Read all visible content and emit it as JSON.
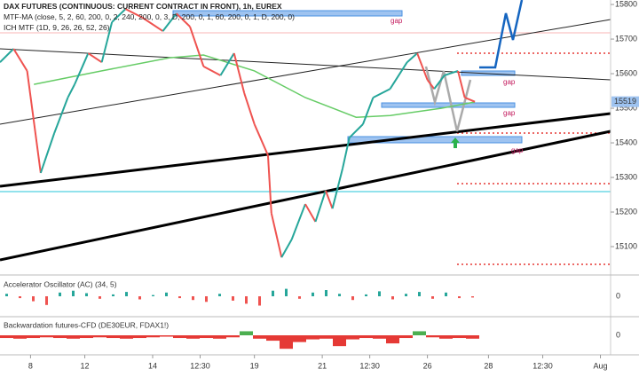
{
  "chart_data": {
    "type": "candle-line",
    "header": [
      "DAX FUTURES (CONTINUOUS: CURRENT CONTRACT IN FRONT), 1h, EUREX",
      "MTF-MA (close, 5, 2, 60, 200, 0, 2, 240, 200, 0, 3, D, 200, 0, 1, 60, 200, 0, 1, D, 200, 0)",
      "ICH MTF (1D, 9, 26, 26, 52, 26)"
    ],
    "gap_labels": [
      "gap",
      "gap",
      "gap",
      "gap"
    ],
    "x": [
      0,
      4,
      8,
      12,
      16,
      20,
      22,
      26,
      30,
      33,
      37,
      42,
      48,
      52,
      56,
      60,
      65,
      69,
      72,
      75,
      79,
      80,
      83,
      86,
      90,
      93,
      96,
      98,
      101,
      103,
      107,
      110,
      115,
      120,
      123,
      126,
      128,
      131,
      135,
      137,
      140
    ],
    "series": [
      {
        "name": "close",
        "color": "#26a69a",
        "values": [
          15633,
          15672,
          15608,
          15313,
          15428,
          15531,
          15569,
          15659,
          15633,
          15749,
          15787,
          15762,
          15723,
          15774,
          15736,
          15621,
          15595,
          15659,
          15544,
          15454,
          15364,
          15197,
          15069,
          15121,
          15223,
          15172,
          15262,
          15210,
          15326,
          15415,
          15454,
          15531,
          15556,
          15633,
          15659,
          15582,
          15556,
          15595,
          15608,
          15531,
          15519
        ]
      }
    ],
    "ma": {
      "color": "#66cc66",
      "x": [
        10,
        30,
        50,
        60,
        75,
        90,
        105,
        115,
        130,
        140
      ],
      "values": [
        15569,
        15608,
        15646,
        15654,
        15608,
        15531,
        15474,
        15479,
        15500,
        15518
      ]
    },
    "last_price": 15519,
    "xlim": [
      0,
      180
    ],
    "ylim": [
      15018,
      15813
    ],
    "yticks": [
      15100,
      15200,
      15300,
      15400,
      15500,
      15600,
      15700,
      15800
    ],
    "xticks": [
      {
        "value": 9,
        "label": "8"
      },
      {
        "value": 25,
        "label": "12"
      },
      {
        "value": 45,
        "label": "14"
      },
      {
        "value": 59,
        "label": "12:30"
      },
      {
        "value": 75,
        "label": "19"
      },
      {
        "value": 95,
        "label": "21"
      },
      {
        "value": 109,
        "label": "12:30"
      },
      {
        "value": 126,
        "label": "26"
      },
      {
        "value": 144,
        "label": "28"
      },
      {
        "value": 160,
        "label": "12:30"
      },
      {
        "value": 177,
        "label": "Aug"
      }
    ],
    "oscillators": [
      {
        "name": "Accelerator Oscillator (AC) (34, 5)",
        "zero_label": "0",
        "ylim": [
          -30,
          30
        ],
        "values": [
          4,
          -3,
          -8,
          -14,
          6,
          9,
          5,
          -4,
          3,
          7,
          -5,
          2,
          6,
          -3,
          -6,
          -9,
          4,
          -7,
          -12,
          -15,
          9,
          12,
          -4,
          6,
          10,
          4,
          -6,
          3,
          8,
          -5,
          4,
          7,
          -4,
          6,
          -3,
          -2
        ]
      },
      {
        "name": "Backwardation futures-CFD (DE30EUR, FDAX1!)",
        "zero_label": "0",
        "ylim": [
          -25,
          25
        ],
        "values": [
          -4,
          -5,
          -4,
          -3,
          -4,
          -5,
          -4,
          -3,
          -4,
          -5,
          -4,
          -3,
          -2,
          -4,
          -5,
          -4,
          -5,
          -3,
          6,
          -5,
          -8,
          -20,
          -10,
          -6,
          -5,
          -16,
          -6,
          -4,
          -5,
          -12,
          -4,
          6,
          -3,
          -5,
          -4,
          -5
        ]
      }
    ]
  }
}
